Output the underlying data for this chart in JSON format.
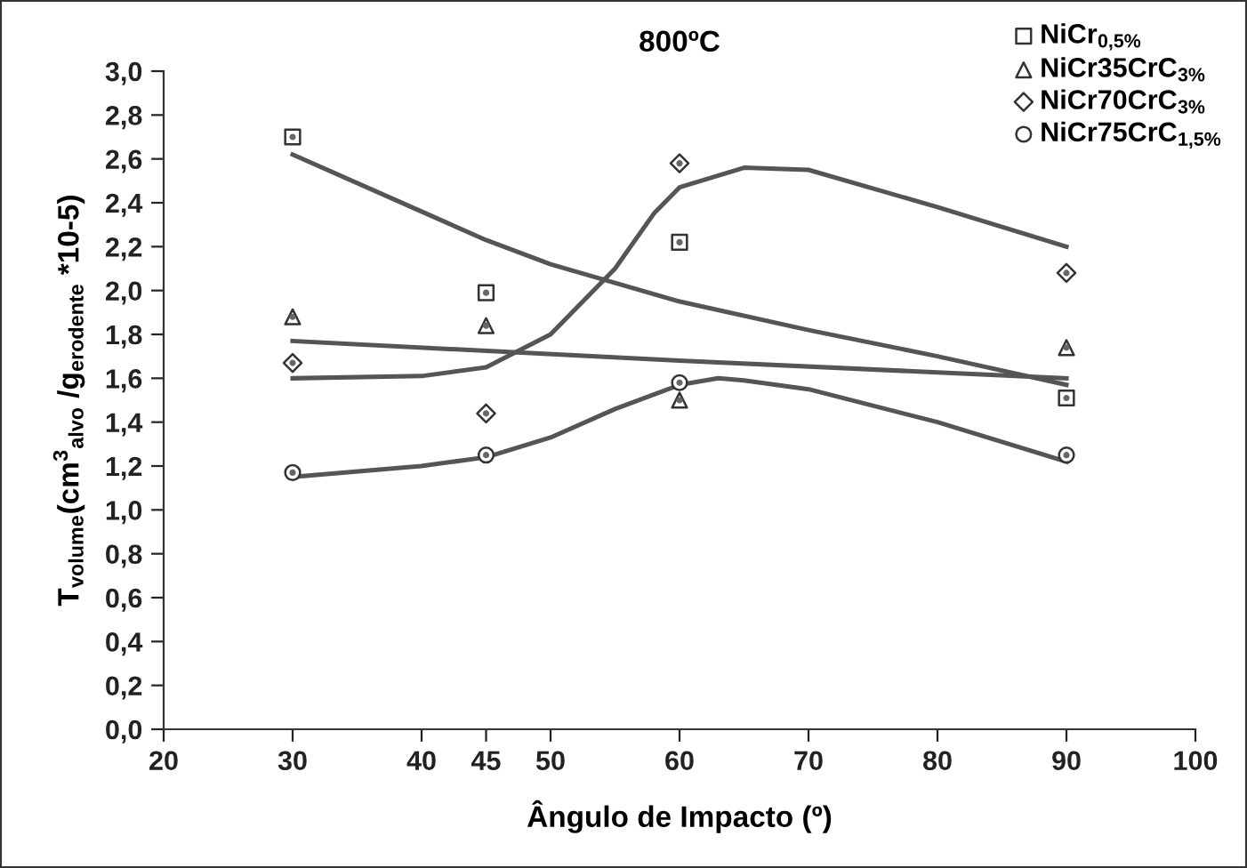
{
  "chart_data": {
    "type": "scatter",
    "title": "800ºC",
    "xlabel": "Ângulo de Impacto (º)",
    "ylabel": "T$_{volume}$(cm$^{3}$$_{alvo}$ /g$_{erodente}$ *10-5)",
    "xlim": [
      20,
      100
    ],
    "xticks": [
      20,
      30,
      40,
      45,
      50,
      60,
      70,
      80,
      90,
      100
    ],
    "ylim": [
      0,
      3.0
    ],
    "yticks": [
      {
        "value": 0,
        "label": "0,0"
      },
      {
        "value": 0.2,
        "label": "0,2"
      },
      {
        "value": 0.4,
        "label": "0,4"
      },
      {
        "value": 0.6,
        "label": "0,6"
      },
      {
        "value": 0.8,
        "label": "0,8"
      },
      {
        "value": 1.0,
        "label": "1,0"
      },
      {
        "value": 1.2,
        "label": "1,2"
      },
      {
        "value": 1.4,
        "label": "1,4"
      },
      {
        "value": 1.6,
        "label": "1,6"
      },
      {
        "value": 1.8,
        "label": "1,8"
      },
      {
        "value": 2.0,
        "label": "2,0"
      },
      {
        "value": 2.2,
        "label": "2,2"
      },
      {
        "value": 2.4,
        "label": "2,4"
      },
      {
        "value": 2.6,
        "label": "2,6"
      },
      {
        "value": 2.8,
        "label": "2,8"
      },
      {
        "value": 3.0,
        "label": "3,0"
      }
    ],
    "grid": false,
    "legend": "top right",
    "series": [
      {
        "name": "NiCr$_{0,5%}$",
        "marker": "square",
        "color": "#333333",
        "x": [
          30,
          45,
          60,
          90
        ],
        "values": [
          2.7,
          1.99,
          2.22,
          1.51
        ]
      },
      {
        "name": "NiCr35CrC$_{3%}$",
        "marker": "triangle",
        "color": "#333333",
        "x": [
          30,
          45,
          60,
          90
        ],
        "values": [
          1.88,
          1.84,
          1.5,
          1.74
        ]
      },
      {
        "name": "NiCr70CrC$_{3%}$",
        "marker": "diamond",
        "color": "#333333",
        "x": [
          30,
          45,
          60,
          90
        ],
        "values": [
          1.67,
          1.44,
          2.58,
          2.08
        ]
      },
      {
        "name": "NiCr75CrC$_{1,5%}$",
        "marker": "circle",
        "color": "#333333",
        "x": [
          30,
          45,
          60,
          90
        ],
        "values": [
          1.17,
          1.25,
          1.58,
          1.25
        ]
      },
      {
        "type": "line",
        "color": "#555555",
        "x": [
          30,
          40,
          45,
          50,
          60,
          70,
          80,
          90
        ],
        "values": [
          2.62,
          2.36,
          2.23,
          2.12,
          1.95,
          1.82,
          1.7,
          1.57
        ]
      },
      {
        "type": "line",
        "color": "#555555",
        "x": [
          30,
          60,
          90
        ],
        "values": [
          1.77,
          1.68,
          1.6
        ]
      },
      {
        "type": "line",
        "color": "#555555",
        "x": [
          30,
          40,
          45,
          50,
          55,
          58,
          60,
          65,
          70,
          80,
          90
        ],
        "values": [
          1.6,
          1.61,
          1.65,
          1.8,
          2.1,
          2.35,
          2.47,
          2.56,
          2.55,
          2.38,
          2.2
        ]
      },
      {
        "type": "line",
        "color": "#555555",
        "x": [
          30,
          40,
          45,
          50,
          55,
          60,
          63,
          65,
          70,
          80,
          90
        ],
        "values": [
          1.15,
          1.2,
          1.24,
          1.33,
          1.46,
          1.57,
          1.6,
          1.59,
          1.55,
          1.4,
          1.22
        ]
      }
    ]
  }
}
